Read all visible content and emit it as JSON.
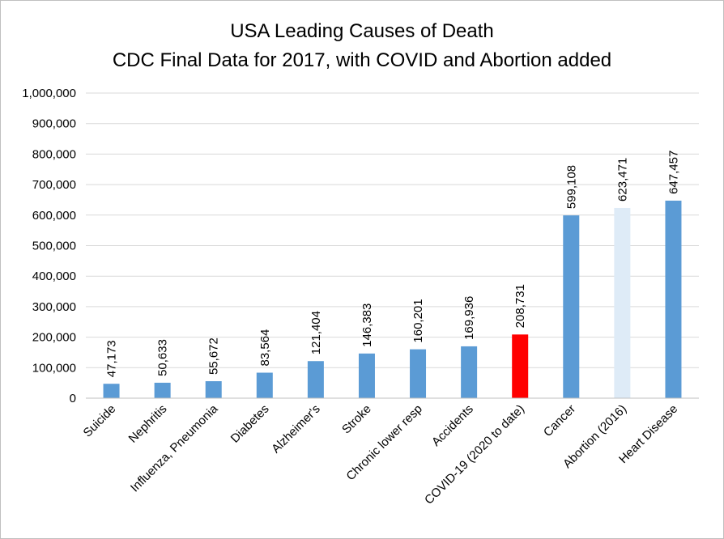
{
  "chart_data": {
    "type": "bar",
    "title": "USA Leading Causes of Death",
    "subtitle": "CDC Final Data for 2017, with COVID and Abortion added",
    "xlabel": "",
    "ylabel": "",
    "ylim": [
      0,
      1000000
    ],
    "y_tick_step": 100000,
    "grid": true,
    "legend": "none",
    "categories": [
      "Suicide",
      "Nephritis",
      "Influenza, Pneumonia",
      "Diabetes",
      "Alzheimer's",
      "Stroke",
      "Chronic lower resp",
      "Accidents",
      "COVID-19 (2020 to date)",
      "Cancer",
      "Abortion (2016)",
      "Heart Disease"
    ],
    "values": [
      47173,
      50633,
      55672,
      83564,
      121404,
      146383,
      160201,
      169936,
      208731,
      599108,
      623471,
      647457
    ],
    "bar_colors": [
      "#5b9bd5",
      "#5b9bd5",
      "#5b9bd5",
      "#5b9bd5",
      "#5b9bd5",
      "#5b9bd5",
      "#5b9bd5",
      "#5b9bd5",
      "#ff0000",
      "#5b9bd5",
      "#deebf7",
      "#5b9bd5"
    ],
    "data_labels": true
  },
  "colors": {
    "gridline": "#d9d9d9",
    "axis": "#bfbfbf",
    "frame": "#bfbfbf"
  }
}
